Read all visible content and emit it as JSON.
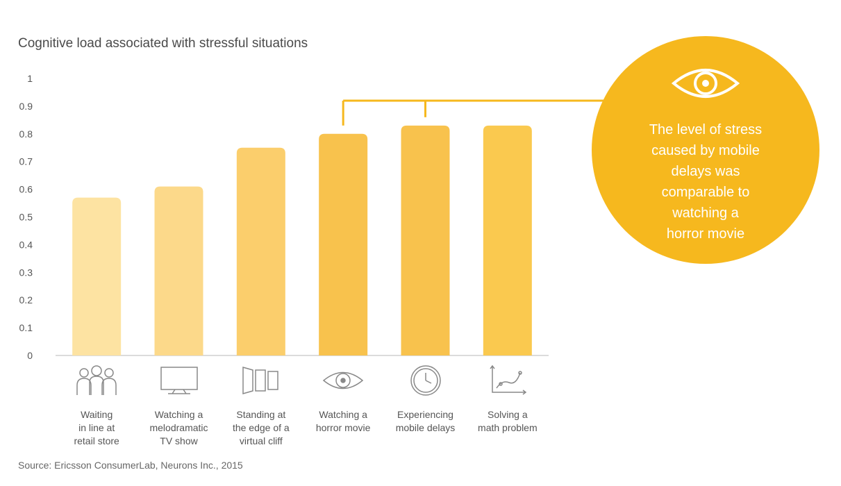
{
  "chart_data": {
    "type": "bar",
    "title": "Cognitive load associated with stressful situations",
    "categories": [
      "Waiting in line at retail store",
      "Watching a melodramatic TV show",
      "Standing at the edge of a virtual cliff",
      "Watching a horror movie",
      "Experiencing mobile delays",
      "Solving a math problem"
    ],
    "category_label_lines": [
      [
        "Waiting",
        "in line at",
        "retail store"
      ],
      [
        "Watching a",
        "melodramatic",
        "TV show"
      ],
      [
        "Standing at",
        "the edge of a",
        "virtual cliff"
      ],
      [
        "Watching a",
        "horror movie"
      ],
      [
        "Experiencing",
        "mobile delays"
      ],
      [
        "Solving a",
        "math problem"
      ]
    ],
    "category_icons": [
      "people-group-icon",
      "tv-screen-icon",
      "vr-panels-icon",
      "eye-icon",
      "clock-icon",
      "graph-icon"
    ],
    "values": [
      0.57,
      0.61,
      0.75,
      0.8,
      0.83,
      0.83
    ],
    "bar_colors": [
      "#fde3a2",
      "#fcd98a",
      "#fbce6c",
      "#f8c24d",
      "#f8c24d",
      "#fac94f"
    ],
    "ylim": [
      0,
      1
    ],
    "yticks": [
      "0",
      "0.1",
      "0.2",
      "0.3",
      "0.4",
      "0.5",
      "0.6",
      "0.7",
      "0.8",
      "0.9",
      "1"
    ],
    "xlabel": "",
    "ylabel": "",
    "grid": false,
    "annotation": {
      "text_lines": [
        "The level of stress",
        "caused by mobile",
        "delays was",
        "comparable to",
        "watching a",
        "horror movie"
      ],
      "icon": "eye-icon",
      "color": "#f6b81e",
      "bracket_targets": [
        "Watching a horror movie",
        "Experiencing mobile delays"
      ]
    }
  },
  "source": "Source: Ericsson ConsumerLab, Neurons Inc., 2015"
}
